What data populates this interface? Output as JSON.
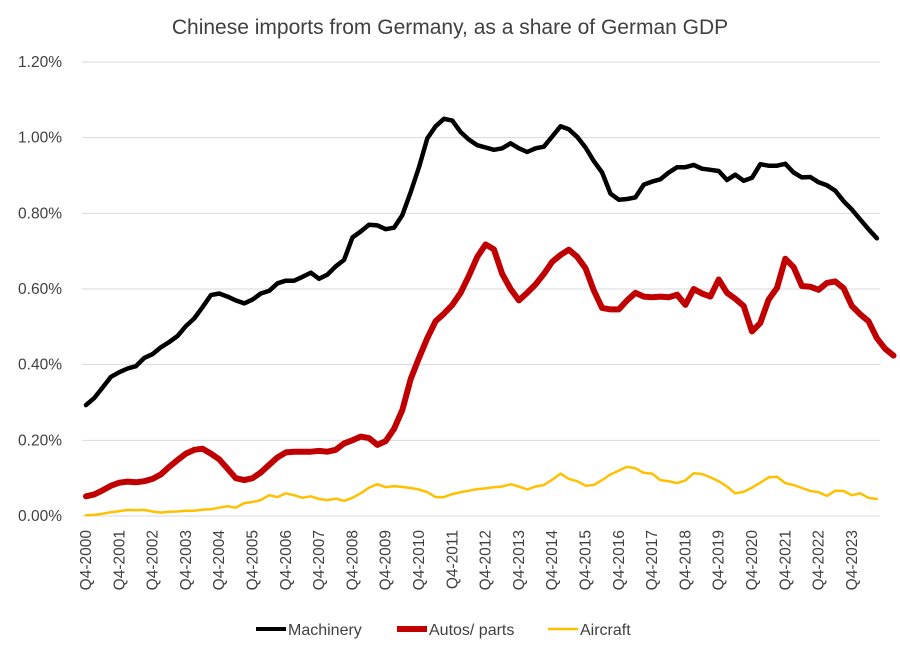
{
  "chart_data": {
    "type": "line",
    "title": "Chinese imports from Germany, as a share of German GDP",
    "xlabel": "",
    "ylabel": "",
    "ylim": [
      0,
      0.012
    ],
    "y_ticks": [
      "0.00%",
      "0.20%",
      "0.40%",
      "0.60%",
      "0.80%",
      "1.00%",
      "1.20%"
    ],
    "grid": true,
    "legend_position": "bottom",
    "x_ticks": [
      "Q4-2000",
      "Q4-2001",
      "Q4-2002",
      "Q4-2003",
      "Q4-2004",
      "Q4-2005",
      "Q4-2006",
      "Q4-2007",
      "Q4-2008",
      "Q4-2009",
      "Q4-2010",
      "Q4-2011",
      "Q4-2012",
      "Q4-2013",
      "Q4-2014",
      "Q4-2015",
      "Q4-2016",
      "Q4-2017",
      "Q4-2018",
      "Q4-2019",
      "Q4-2020",
      "Q4-2021",
      "Q4-2022",
      "Q4-2023"
    ],
    "series": [
      {
        "name": "Machinery",
        "color": "#000000",
        "points": [
          [
            0,
            0.00293
          ],
          [
            0.25,
            0.00312
          ],
          [
            0.5,
            0.0034
          ],
          [
            0.75,
            0.00368
          ],
          [
            1,
            0.0038
          ],
          [
            1.25,
            0.0039
          ],
          [
            1.5,
            0.00396
          ],
          [
            1.75,
            0.00418
          ],
          [
            2,
            0.00428
          ],
          [
            2.25,
            0.00446
          ],
          [
            2.5,
            0.0046
          ],
          [
            2.75,
            0.00476
          ],
          [
            3,
            0.00502
          ],
          [
            3.25,
            0.00522
          ],
          [
            3.5,
            0.00552
          ],
          [
            3.75,
            0.00584
          ],
          [
            4,
            0.00588
          ],
          [
            4.25,
            0.0058
          ],
          [
            4.5,
            0.0057
          ],
          [
            4.75,
            0.00562
          ],
          [
            5,
            0.00572
          ],
          [
            5.25,
            0.00588
          ],
          [
            5.5,
            0.00595
          ],
          [
            5.75,
            0.00615
          ],
          [
            6,
            0.00622
          ],
          [
            6.25,
            0.00622
          ],
          [
            6.5,
            0.00632
          ],
          [
            6.75,
            0.00643
          ],
          [
            7,
            0.00627
          ],
          [
            7.25,
            0.00638
          ],
          [
            7.5,
            0.0066
          ],
          [
            7.75,
            0.00677
          ],
          [
            8,
            0.00736
          ],
          [
            8.25,
            0.00752
          ],
          [
            8.5,
            0.0077
          ],
          [
            8.75,
            0.00768
          ],
          [
            9,
            0.00758
          ],
          [
            9.25,
            0.00762
          ],
          [
            9.5,
            0.00795
          ],
          [
            9.75,
            0.00856
          ],
          [
            10,
            0.00922
          ],
          [
            10.25,
            0.00998
          ],
          [
            10.5,
            0.0103
          ],
          [
            10.75,
            0.0105
          ],
          [
            11,
            0.01045
          ],
          [
            11.25,
            0.01015
          ],
          [
            11.5,
            0.00995
          ],
          [
            11.75,
            0.0098
          ],
          [
            12,
            0.00974
          ],
          [
            12.25,
            0.00968
          ],
          [
            12.5,
            0.00972
          ],
          [
            12.75,
            0.00985
          ],
          [
            13,
            0.00972
          ],
          [
            13.25,
            0.00962
          ],
          [
            13.5,
            0.00972
          ],
          [
            13.75,
            0.00976
          ],
          [
            14,
            0.01003
          ],
          [
            14.25,
            0.0103
          ],
          [
            14.5,
            0.01022
          ],
          [
            14.75,
            0.01002
          ],
          [
            15,
            0.00974
          ],
          [
            15.25,
            0.00938
          ],
          [
            15.5,
            0.00908
          ],
          [
            15.75,
            0.00852
          ],
          [
            16,
            0.00836
          ],
          [
            16.25,
            0.00838
          ],
          [
            16.5,
            0.00842
          ],
          [
            16.75,
            0.00876
          ],
          [
            17,
            0.00884
          ],
          [
            17.25,
            0.0089
          ],
          [
            17.5,
            0.00908
          ],
          [
            17.75,
            0.00922
          ],
          [
            18,
            0.00922
          ],
          [
            18.25,
            0.00928
          ],
          [
            18.5,
            0.00918
          ],
          [
            18.75,
            0.00915
          ],
          [
            19,
            0.00912
          ],
          [
            19.25,
            0.00888
          ],
          [
            19.5,
            0.00902
          ],
          [
            19.75,
            0.00886
          ],
          [
            20,
            0.00894
          ],
          [
            20.25,
            0.0093
          ],
          [
            20.5,
            0.00926
          ],
          [
            20.75,
            0.00926
          ],
          [
            21,
            0.00931
          ],
          [
            21.25,
            0.00908
          ],
          [
            21.5,
            0.00895
          ],
          [
            21.75,
            0.00896
          ],
          [
            22,
            0.00882
          ],
          [
            22.25,
            0.00874
          ],
          [
            22.5,
            0.0086
          ],
          [
            22.75,
            0.00832
          ],
          [
            23,
            0.0081
          ],
          [
            23.25,
            0.00784
          ],
          [
            23.5,
            0.00758
          ],
          [
            23.75,
            0.00734
          ]
        ]
      },
      {
        "name": "Autos/ parts",
        "color": "#c00000",
        "points": [
          [
            0,
            0.00052
          ],
          [
            0.25,
            0.00057
          ],
          [
            0.5,
            0.00068
          ],
          [
            0.75,
            0.0008
          ],
          [
            1,
            0.00088
          ],
          [
            1.25,
            0.00091
          ],
          [
            1.5,
            0.00089
          ],
          [
            1.75,
            0.00092
          ],
          [
            2,
            0.00098
          ],
          [
            2.25,
            0.0011
          ],
          [
            2.5,
            0.0013
          ],
          [
            2.75,
            0.00148
          ],
          [
            3,
            0.00165
          ],
          [
            3.25,
            0.00175
          ],
          [
            3.5,
            0.00178
          ],
          [
            3.75,
            0.00165
          ],
          [
            4,
            0.0015
          ],
          [
            4.25,
            0.00125
          ],
          [
            4.5,
            0.001
          ],
          [
            4.75,
            0.00095
          ],
          [
            5,
            0.001
          ],
          [
            5.25,
            0.00115
          ],
          [
            5.5,
            0.00135
          ],
          [
            5.75,
            0.00155
          ],
          [
            6,
            0.00168
          ],
          [
            6.25,
            0.0017
          ],
          [
            6.5,
            0.0017
          ],
          [
            6.75,
            0.0017
          ],
          [
            7,
            0.00172
          ],
          [
            7.25,
            0.0017
          ],
          [
            7.5,
            0.00175
          ],
          [
            7.75,
            0.00192
          ],
          [
            8,
            0.002
          ],
          [
            8.25,
            0.0021
          ],
          [
            8.5,
            0.00206
          ],
          [
            8.75,
            0.00188
          ],
          [
            9,
            0.00198
          ],
          [
            9.25,
            0.0023
          ],
          [
            9.5,
            0.0028
          ],
          [
            9.75,
            0.00362
          ],
          [
            10,
            0.00418
          ],
          [
            10.25,
            0.0047
          ],
          [
            10.5,
            0.00515
          ],
          [
            10.75,
            0.00535
          ],
          [
            11,
            0.00558
          ],
          [
            11.25,
            0.0059
          ],
          [
            11.5,
            0.00635
          ],
          [
            11.75,
            0.00685
          ],
          [
            12,
            0.00718
          ],
          [
            12.25,
            0.00705
          ],
          [
            12.5,
            0.0064
          ],
          [
            12.75,
            0.006
          ],
          [
            13,
            0.0057
          ],
          [
            13.25,
            0.0059
          ],
          [
            13.5,
            0.00612
          ],
          [
            13.75,
            0.0064
          ],
          [
            14,
            0.00672
          ],
          [
            14.25,
            0.0069
          ],
          [
            14.5,
            0.00704
          ],
          [
            14.75,
            0.00685
          ],
          [
            15,
            0.00655
          ],
          [
            15.25,
            0.00596
          ],
          [
            15.5,
            0.0055
          ],
          [
            15.75,
            0.00546
          ],
          [
            16,
            0.00546
          ],
          [
            16.25,
            0.0057
          ],
          [
            16.5,
            0.0059
          ],
          [
            16.75,
            0.0058
          ],
          [
            17,
            0.00578
          ],
          [
            17.25,
            0.0058
          ],
          [
            17.5,
            0.00578
          ],
          [
            17.75,
            0.00585
          ],
          [
            18,
            0.00558
          ],
          [
            18.25,
            0.006
          ],
          [
            18.5,
            0.00588
          ],
          [
            18.75,
            0.0058
          ],
          [
            19,
            0.00625
          ],
          [
            19.25,
            0.0059
          ],
          [
            19.5,
            0.00574
          ],
          [
            19.75,
            0.00555
          ],
          [
            20,
            0.00488
          ],
          [
            20.25,
            0.0051
          ],
          [
            20.5,
            0.00572
          ],
          [
            20.75,
            0.00603
          ],
          [
            21,
            0.0068
          ],
          [
            21.25,
            0.00658
          ],
          [
            21.5,
            0.00608
          ],
          [
            21.75,
            0.00606
          ],
          [
            22,
            0.00598
          ],
          [
            22.25,
            0.00616
          ],
          [
            22.5,
            0.0062
          ],
          [
            22.75,
            0.00602
          ],
          [
            23,
            0.00555
          ],
          [
            23.25,
            0.00533
          ],
          [
            23.5,
            0.00515
          ],
          [
            23.75,
            0.0047
          ],
          [
            24,
            0.00442
          ],
          [
            24.25,
            0.00424
          ]
        ]
      },
      {
        "name": "Aircraft",
        "color": "#ffc000",
        "points": [
          [
            0,
            2e-05
          ],
          [
            0.25,
            3e-05
          ],
          [
            0.5,
            6e-05
          ],
          [
            0.75,
            0.0001
          ],
          [
            1,
            0.00013
          ],
          [
            1.25,
            0.00016
          ],
          [
            1.5,
            0.00015
          ],
          [
            1.75,
            0.00016
          ],
          [
            2,
            0.00012
          ],
          [
            2.25,
            9e-05
          ],
          [
            2.5,
            0.00011
          ],
          [
            2.75,
            0.00012
          ],
          [
            3,
            0.00014
          ],
          [
            3.25,
            0.00014
          ],
          [
            3.5,
            0.00017
          ],
          [
            3.75,
            0.00018
          ],
          [
            4,
            0.00022
          ],
          [
            4.25,
            0.00026
          ],
          [
            4.5,
            0.00022
          ],
          [
            4.75,
            0.00034
          ],
          [
            5,
            0.00037
          ],
          [
            5.25,
            0.00042
          ],
          [
            5.5,
            0.00055
          ],
          [
            5.75,
            0.0005
          ],
          [
            6,
            0.0006
          ],
          [
            6.25,
            0.00055
          ],
          [
            6.5,
            0.00048
          ],
          [
            6.75,
            0.00052
          ],
          [
            7,
            0.00045
          ],
          [
            7.25,
            0.00042
          ],
          [
            7.5,
            0.00046
          ],
          [
            7.75,
            0.0004
          ],
          [
            8,
            0.00048
          ],
          [
            8.25,
            0.0006
          ],
          [
            8.5,
            0.00075
          ],
          [
            8.75,
            0.00084
          ],
          [
            9,
            0.00076
          ],
          [
            9.25,
            0.00079
          ],
          [
            9.5,
            0.00077
          ],
          [
            9.75,
            0.00074
          ],
          [
            10,
            0.0007
          ],
          [
            10.25,
            0.00063
          ],
          [
            10.5,
            0.0005
          ],
          [
            10.75,
            0.0005
          ],
          [
            11,
            0.00058
          ],
          [
            11.25,
            0.00063
          ],
          [
            11.5,
            0.00067
          ],
          [
            11.75,
            0.00071
          ],
          [
            12,
            0.00073
          ],
          [
            12.25,
            0.00076
          ],
          [
            12.5,
            0.00078
          ],
          [
            12.75,
            0.00084
          ],
          [
            13,
            0.00078
          ],
          [
            13.25,
            0.0007
          ],
          [
            13.5,
            0.00078
          ],
          [
            13.75,
            0.00082
          ],
          [
            14,
            0.00096
          ],
          [
            14.25,
            0.00112
          ],
          [
            14.5,
            0.00098
          ],
          [
            14.75,
            0.00092
          ],
          [
            15,
            0.0008
          ],
          [
            15.25,
            0.00082
          ],
          [
            15.5,
            0.00095
          ],
          [
            15.75,
            0.0011
          ],
          [
            16,
            0.0012
          ],
          [
            16.25,
            0.0013
          ],
          [
            16.5,
            0.00126
          ],
          [
            16.75,
            0.00114
          ],
          [
            17,
            0.00112
          ],
          [
            17.25,
            0.00095
          ],
          [
            17.5,
            0.00092
          ],
          [
            17.75,
            0.00087
          ],
          [
            18,
            0.00094
          ],
          [
            18.25,
            0.00113
          ],
          [
            18.5,
            0.00111
          ],
          [
            18.75,
            0.00102
          ],
          [
            19,
            0.00092
          ],
          [
            19.25,
            0.00078
          ],
          [
            19.5,
            0.0006
          ],
          [
            19.75,
            0.00064
          ],
          [
            20,
            0.00075
          ],
          [
            20.25,
            0.00088
          ],
          [
            20.5,
            0.00102
          ],
          [
            20.75,
            0.00104
          ],
          [
            21,
            0.00087
          ],
          [
            21.25,
            0.00082
          ],
          [
            21.5,
            0.00074
          ],
          [
            21.75,
            0.00066
          ],
          [
            22,
            0.00063
          ],
          [
            22.25,
            0.00053
          ],
          [
            22.5,
            0.00067
          ],
          [
            22.75,
            0.00066
          ],
          [
            23,
            0.00055
          ],
          [
            23.25,
            0.0006
          ],
          [
            23.5,
            0.00048
          ],
          [
            23.75,
            0.00045
          ]
        ]
      }
    ]
  }
}
